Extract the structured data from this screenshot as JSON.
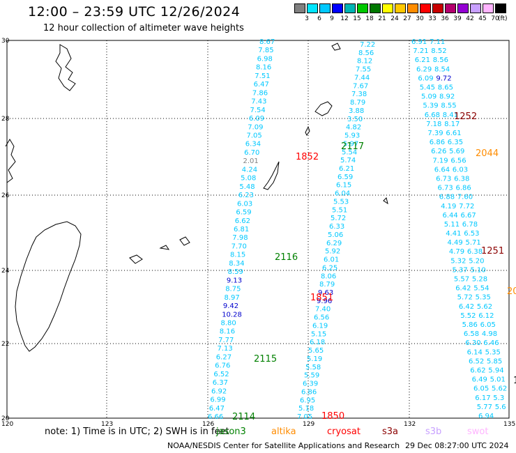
{
  "title": "12:00 – 23:59 UTC 12/26/2024",
  "subtitle": "12 hour collection of altimeter wave heights",
  "color_scale": {
    "unit": "(ft)",
    "labels": [
      "3",
      "6",
      "9",
      "12",
      "15",
      "18",
      "21",
      "24",
      "27",
      "30",
      "33",
      "36",
      "39",
      "42",
      "45",
      "70"
    ],
    "colors": [
      "#808080",
      "#00e5ff",
      "#00c8ff",
      "#0000ff",
      "#00b4b4",
      "#00c800",
      "#007800",
      "#ffff00",
      "#ffc800",
      "#ff8c00",
      "#ff0000",
      "#c80000",
      "#b4006e",
      "#9400d3",
      "#c8a0ff",
      "#ffb4ff",
      "#000000"
    ]
  },
  "axes": {
    "lat_labels": [
      "30",
      "28",
      "26",
      "24",
      "22",
      "20"
    ],
    "lon_labels": [
      "120",
      "123",
      "126",
      "129",
      "132",
      "135"
    ]
  },
  "tracks": {
    "A": [
      "8.67",
      "7.85",
      "6.98",
      "8.16",
      "7.51",
      "6.47",
      "7.86",
      "7.43",
      "7.54",
      "6.09",
      "7.09",
      "7.05",
      "6.34",
      "6.70",
      "2.01",
      "4.24",
      "5.08",
      "5.48",
      "6.23",
      "6.03",
      "6.59",
      "6.62",
      "6.81",
      "7.98",
      "7.70",
      "8.15",
      "8.34",
      "8.59",
      "9.13",
      "8.75",
      "8.97",
      "9.42",
      "10.28",
      "8.80",
      "8.16",
      "7.77",
      "7.13",
      "6.27",
      "6.76",
      "6.52",
      "6.37",
      "6.92",
      "6.99",
      "6.47",
      "6.66"
    ],
    "B": [
      "7.22",
      "8.56",
      "8.12",
      "7.55",
      "7.44",
      "7.67",
      "7.38",
      "8.79",
      "3.88",
      "3.50",
      "4.82",
      "5.93",
      "5.97",
      "5.54",
      "5.74",
      "6.21",
      "6.59",
      "6.15",
      "6.04",
      "5.53",
      "5.51",
      "5.72",
      "6.33",
      "5.06",
      "6.29",
      "5.92",
      "6.01",
      "6.25",
      "8.06",
      "8.79",
      "9.63",
      "9.96",
      "7.40",
      "6.56",
      "6.19",
      "5.15",
      "6.18",
      "5.65",
      "5.19",
      "5.58",
      "5.59",
      "6.39",
      "6.86",
      "6.95",
      "5.18",
      "7.05"
    ],
    "C": [
      "6.91",
      "7.11",
      "7.21",
      "8.52",
      "6.21",
      "8.56",
      "6.29",
      "8.54",
      "6.09",
      "9.72",
      "5.45",
      "8.65",
      "5.09",
      "8.92",
      "5.39",
      "8.55",
      "6.68",
      "8.41",
      "7.18",
      "8.17",
      "7.39",
      "6.61",
      "6.86",
      "6.35",
      "6.26",
      "5.69",
      "7.19",
      "6.56",
      "6.64",
      "6.03",
      "6.73",
      "6.38",
      "6.73",
      "6.86",
      "6.88",
      "7.60",
      "4.19",
      "7.72",
      "6.44",
      "6.67",
      "5.11",
      "6.78",
      "4.41",
      "6.53",
      "4.49",
      "5.71",
      "4.79",
      "6.38",
      "5.32",
      "5.20",
      "5.37",
      "5.10",
      "5.57",
      "5.28",
      "6.42",
      "5.54",
      "5.72",
      "5.35",
      "6.42",
      "5.62",
      "5.52",
      "6.12",
      "5.86",
      "6.05",
      "6.58",
      "4.98",
      "6.30",
      "6.46",
      "6.14",
      "5.35",
      "6.52",
      "5.85",
      "6.62",
      "5.94",
      "6.49",
      "5.01",
      "6.05",
      "5.62",
      "6.17",
      "5.3",
      "5.77",
      "5.6",
      "6.94"
    ]
  },
  "time_labels": [
    {
      "text": "1852",
      "color": "#ff0000"
    },
    {
      "text": "2117",
      "color": "#008000"
    },
    {
      "text": "1252",
      "color": "#8b0000"
    },
    {
      "text": "2044",
      "color": "#ff8c00"
    },
    {
      "text": "2116",
      "color": "#008000"
    },
    {
      "text": "1251",
      "color": "#8b0000"
    },
    {
      "text": "1851",
      "color": "#ff0000"
    },
    {
      "text": "2115",
      "color": "#008000"
    },
    {
      "text": "2114",
      "color": "#008000"
    },
    {
      "text": "1850",
      "color": "#ff0000"
    },
    {
      "text": "20",
      "color": "#ff8c00"
    },
    {
      "text": "1",
      "color": "#000000"
    }
  ],
  "note": "note:  1) Time is in UTC;  2) SWH is in feet",
  "satellites": [
    {
      "name": "jason3",
      "color": "#008000"
    },
    {
      "name": "altika",
      "color": "#ff8c00"
    },
    {
      "name": "cryosat",
      "color": "#ff0000"
    },
    {
      "name": "s3a",
      "color": "#8b0000"
    },
    {
      "name": "s3b",
      "color": "#c8a0ff"
    },
    {
      "name": "swot",
      "color": "#ffb4ff"
    }
  ],
  "credit": "NOAA/NESDIS Center for Satellite Applications and Research",
  "credit_date": "29 Dec 08:27:00 UTC 2024"
}
